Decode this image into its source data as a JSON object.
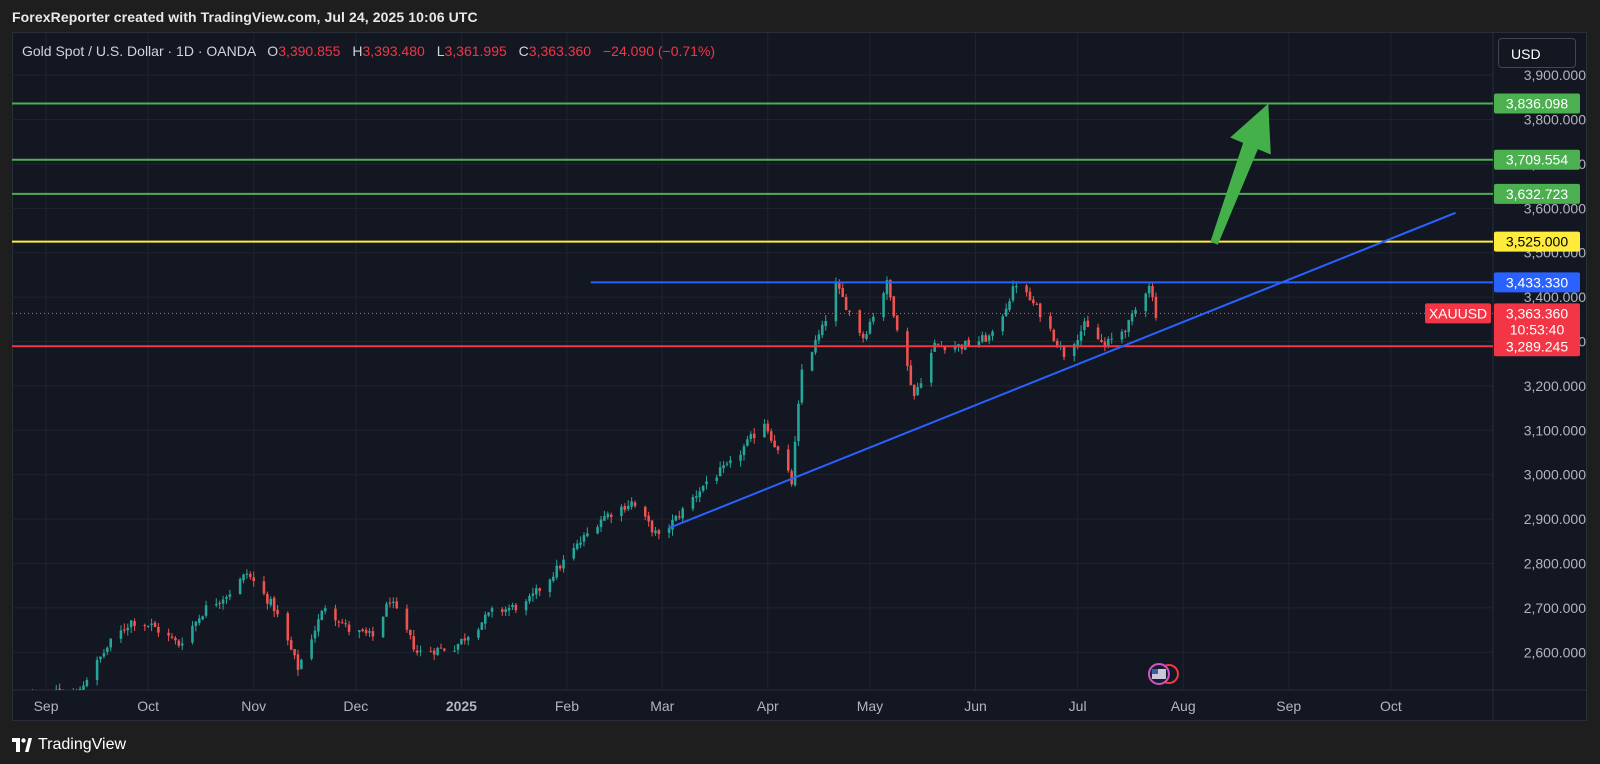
{
  "header": {
    "attribution": "ForexReporter created with TradingView.com, Jul 24, 2025 10:06 UTC"
  },
  "legend": {
    "symbol": "Gold Spot / U.S. Dollar · 1D · OANDA",
    "o_label": "O",
    "o_value": "3,390.855",
    "h_label": "H",
    "h_value": "3,393.480",
    "l_label": "L",
    "l_value": "3,361.995",
    "c_label": "C",
    "c_value": "3,363.360",
    "change": "−24.090 (−0.71%)"
  },
  "currency_button": "USD",
  "footer": {
    "brand": "TradingView",
    "logo_icon": "tradingview-logo-icon"
  },
  "colors": {
    "background": "#131722",
    "up": "#26a69a",
    "down": "#ef5350",
    "green_level": "#4caf50",
    "yellow_level": "#ffeb3b",
    "blue_level": "#2962ff",
    "red_level": "#f23645"
  },
  "chart_data": {
    "type": "candlestick",
    "symbol": "XAUUSD",
    "interval": "1D",
    "x_ticks": [
      "Sep",
      "Oct",
      "Nov",
      "Dec",
      "2025",
      "Feb",
      "Mar",
      "Apr",
      "May",
      "Jun",
      "Jul",
      "Aug",
      "Sep",
      "Oct"
    ],
    "x_range": [
      "2024-08-22",
      "2025-10-31"
    ],
    "y_ticks": [
      "2,600.000",
      "2,700.000",
      "2,800.000",
      "2,900.000",
      "3,000.000",
      "3,100.000",
      "3,200.000",
      "3,300.000",
      "3,400.000",
      "3,500.000",
      "3,600.000",
      "3,700.000",
      "3,800.000",
      "3,900.000"
    ],
    "y_range": [
      2515,
      3995
    ],
    "close_path": [
      [
        "2024-08-22",
        2485
      ],
      [
        "2024-08-30",
        2503
      ],
      [
        "2024-09-10",
        2508
      ],
      [
        "2024-09-20",
        2622
      ],
      [
        "2024-09-26",
        2670
      ],
      [
        "2024-10-02",
        2660
      ],
      [
        "2024-10-10",
        2618
      ],
      [
        "2024-10-18",
        2700
      ],
      [
        "2024-10-25",
        2735
      ],
      [
        "2024-10-30",
        2778
      ],
      [
        "2024-11-07",
        2700
      ],
      [
        "2024-11-14",
        2565
      ],
      [
        "2024-11-22",
        2705
      ],
      [
        "2024-11-29",
        2650
      ],
      [
        "2024-12-06",
        2635
      ],
      [
        "2024-12-11",
        2718
      ],
      [
        "2024-12-19",
        2600
      ],
      [
        "2024-12-30",
        2612
      ],
      [
        "2025-01-10",
        2690
      ],
      [
        "2025-01-20",
        2708
      ],
      [
        "2025-01-30",
        2795
      ],
      [
        "2025-02-11",
        2902
      ],
      [
        "2025-02-20",
        2938
      ],
      [
        "2025-02-28",
        2858
      ],
      [
        "2025-03-06",
        2910
      ],
      [
        "2025-03-14",
        2985
      ],
      [
        "2025-03-21",
        3022
      ],
      [
        "2025-03-31",
        3120
      ],
      [
        "2025-04-08",
        2982
      ],
      [
        "2025-04-11",
        3236
      ],
      [
        "2025-04-17",
        3328
      ],
      [
        "2025-04-21",
        3425
      ],
      [
        "2025-04-29",
        3310
      ],
      [
        "2025-05-06",
        3430
      ],
      [
        "2025-05-14",
        3178
      ],
      [
        "2025-05-20",
        3292
      ],
      [
        "2025-05-28",
        3290
      ],
      [
        "2025-06-06",
        3312
      ],
      [
        "2025-06-13",
        3432
      ],
      [
        "2025-06-20",
        3365
      ],
      [
        "2025-06-27",
        3272
      ],
      [
        "2025-07-03",
        3335
      ],
      [
        "2025-07-09",
        3290
      ],
      [
        "2025-07-16",
        3338
      ],
      [
        "2025-07-22",
        3432
      ],
      [
        "2025-07-24",
        3363
      ]
    ],
    "horizontal_levels": [
      {
        "price": 3836.098,
        "label": "3,836.098",
        "color": "green"
      },
      {
        "price": 3709.554,
        "label": "3,709.554",
        "color": "green"
      },
      {
        "price": 3632.723,
        "label": "3,632.723",
        "color": "green"
      },
      {
        "price": 3525.0,
        "label": "3,525.000",
        "color": "yellow"
      },
      {
        "price": 3433.33,
        "label": "3,433.330",
        "color": "blue",
        "from": "2025-02-08"
      },
      {
        "price": 3289.245,
        "label": "3,289.245",
        "color": "red"
      }
    ],
    "trendline": {
      "from": [
        "2025-03-03",
        2880
      ],
      "to": [
        "2025-10-20",
        3590
      ]
    },
    "projection_arrow": {
      "from": [
        "2025-08-09",
        3525
      ],
      "to": [
        "2025-08-26",
        3836
      ]
    },
    "last_price": {
      "symbol": "XAUUSD",
      "price": "3,363.360",
      "value": 3363.36,
      "countdown": "10:53:40"
    },
    "event_marker": {
      "date": "2025-07-24",
      "icon": "us-flag-icon"
    }
  }
}
